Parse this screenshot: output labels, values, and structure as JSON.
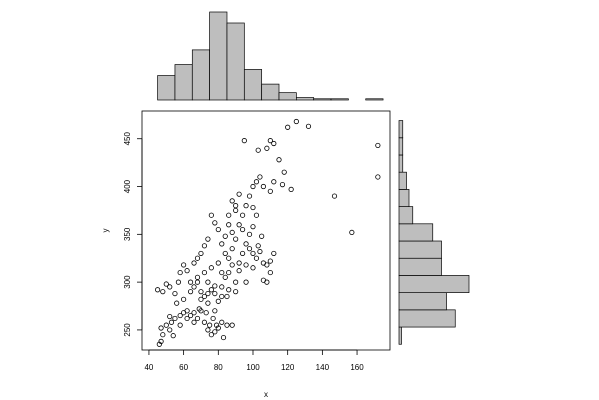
{
  "chart_data": [
    {
      "type": "scatter",
      "x_label": "x",
      "y_label": "y",
      "color": "#000000",
      "xlim": [
        36,
        179
      ],
      "ylim": [
        229,
        479
      ],
      "xticks": [
        40,
        60,
        80,
        100,
        120,
        140,
        160
      ],
      "yticks": [
        250,
        300,
        350,
        400,
        450
      ],
      "x": [
        46,
        47,
        48,
        47,
        50,
        52,
        54,
        53,
        55,
        58,
        60,
        62,
        64,
        66,
        68,
        70,
        72,
        74,
        75,
        76,
        78,
        79,
        80,
        82,
        83,
        85,
        88,
        77,
        73,
        69,
        45,
        48,
        50,
        52,
        55,
        57,
        58,
        60,
        62,
        64,
        66,
        68,
        70,
        72,
        74,
        76,
        78,
        80,
        82,
        84,
        86,
        88,
        90,
        85,
        92,
        94,
        96,
        98,
        100,
        102,
        104,
        106,
        108,
        110,
        103,
        100,
        96,
        108,
        112,
        90,
        88,
        86,
        84,
        82,
        80,
        78,
        76,
        74,
        72,
        70,
        68,
        66,
        92,
        94,
        96,
        98,
        100,
        102,
        104,
        106,
        110,
        112,
        117,
        118,
        115,
        108,
        112,
        110,
        103,
        95,
        120,
        125,
        132,
        122,
        147,
        157,
        172,
        172,
        90,
        88,
        92,
        90,
        86,
        84,
        80,
        76,
        72,
        68,
        64,
        60,
        56,
        70,
        74,
        78,
        66,
        62,
        58,
        52,
        105,
        98,
        94,
        88,
        86,
        82,
        92,
        96,
        100,
        102,
        100,
        106,
        110,
        74,
        78,
        82,
        86,
        90
      ],
      "y": [
        235,
        238,
        245,
        252,
        255,
        250,
        244,
        258,
        262,
        265,
        268,
        270,
        265,
        268,
        262,
        270,
        258,
        250,
        255,
        245,
        248,
        255,
        252,
        258,
        242,
        255,
        255,
        262,
        268,
        272,
        292,
        290,
        298,
        295,
        288,
        300,
        310,
        318,
        312,
        300,
        295,
        305,
        290,
        285,
        300,
        292,
        288,
        280,
        295,
        305,
        310,
        318,
        300,
        285,
        320,
        330,
        340,
        335,
        330,
        325,
        332,
        320,
        318,
        310,
        338,
        315,
        300,
        300,
        330,
        345,
        352,
        360,
        348,
        340,
        355,
        362,
        370,
        345,
        338,
        330,
        325,
        320,
        360,
        370,
        380,
        390,
        400,
        405,
        410,
        400,
        395,
        405,
        402,
        415,
        428,
        440,
        445,
        448,
        438,
        448,
        462,
        468,
        463,
        397,
        390,
        352,
        443,
        410,
        375,
        385,
        392,
        380,
        370,
        330,
        320,
        315,
        310,
        300,
        290,
        282,
        278,
        282,
        278,
        270,
        258,
        262,
        255,
        264,
        348,
        350,
        355,
        335,
        325,
        310,
        312,
        318,
        358,
        370,
        378,
        302,
        322,
        288,
        296,
        285,
        292,
        290
      ]
    },
    {
      "type": "histogram",
      "orientation": "vertical",
      "color": "#bebebe",
      "bins": [
        45,
        55,
        65,
        75,
        85,
        95,
        105,
        115,
        125,
        135,
        145,
        155,
        165,
        175
      ],
      "values": [
        20,
        29,
        41,
        72,
        63,
        25,
        13,
        6,
        2,
        1,
        1,
        0,
        1
      ]
    },
    {
      "type": "histogram",
      "orientation": "horizontal",
      "color": "#bebebe",
      "bins": [
        235,
        253,
        271,
        289,
        307,
        325,
        343,
        361,
        379,
        397,
        415,
        433,
        451,
        469
      ],
      "values": [
        2,
        45,
        38,
        56,
        34,
        34,
        27,
        11,
        8,
        6,
        3,
        3,
        3
      ]
    }
  ]
}
